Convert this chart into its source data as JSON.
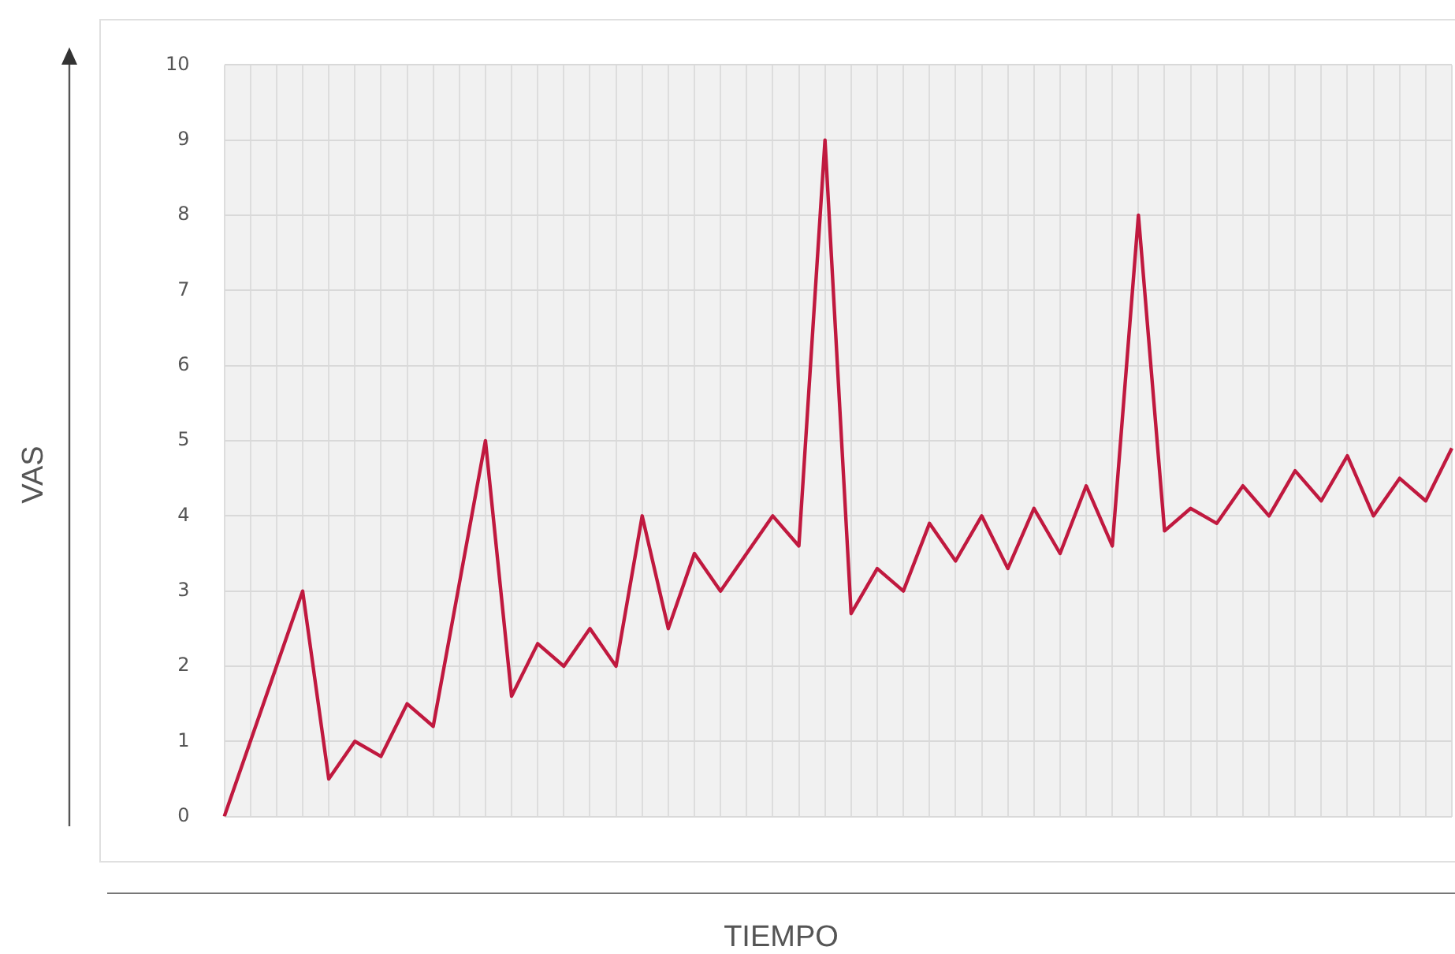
{
  "chart_data": {
    "type": "line",
    "xlabel": "TIEMPO",
    "ylabel": "VAS",
    "categories": [
      null,
      null,
      null,
      null,
      null,
      null,
      null,
      null,
      null,
      null,
      null,
      null,
      null,
      null,
      null,
      null,
      null,
      null,
      null,
      null,
      null,
      null,
      null,
      null,
      null,
      null,
      null,
      null,
      null,
      null,
      null,
      null,
      null,
      null,
      null,
      null,
      null,
      null,
      null,
      null,
      null,
      null,
      null,
      null,
      null,
      null,
      null,
      null
    ],
    "series": [
      {
        "color": "#c0193f",
        "values": [
          0,
          1,
          2,
          3,
          0.5,
          1.0,
          0.8,
          1.5,
          1.2,
          3.1,
          5,
          1.6,
          2.3,
          2.0,
          2.5,
          2.0,
          4.0,
          2.5,
          3.5,
          3.0,
          3.5,
          4.0,
          3.6,
          9,
          2.7,
          3.3,
          3.0,
          3.9,
          3.4,
          4.0,
          3.3,
          4.1,
          3.5,
          4.4,
          3.6,
          8,
          3.8,
          4.1,
          3.9,
          4.4,
          4.0,
          4.6,
          4.2,
          4.8,
          4.0,
          4.5,
          4.2,
          4.9
        ]
      }
    ],
    "ylim": [
      0,
      10
    ],
    "yticks": [
      0,
      1,
      2,
      3,
      4,
      5,
      6,
      7,
      8,
      9,
      10
    ],
    "grid": true,
    "legend": false,
    "marker": "none",
    "line_style": "solid"
  }
}
